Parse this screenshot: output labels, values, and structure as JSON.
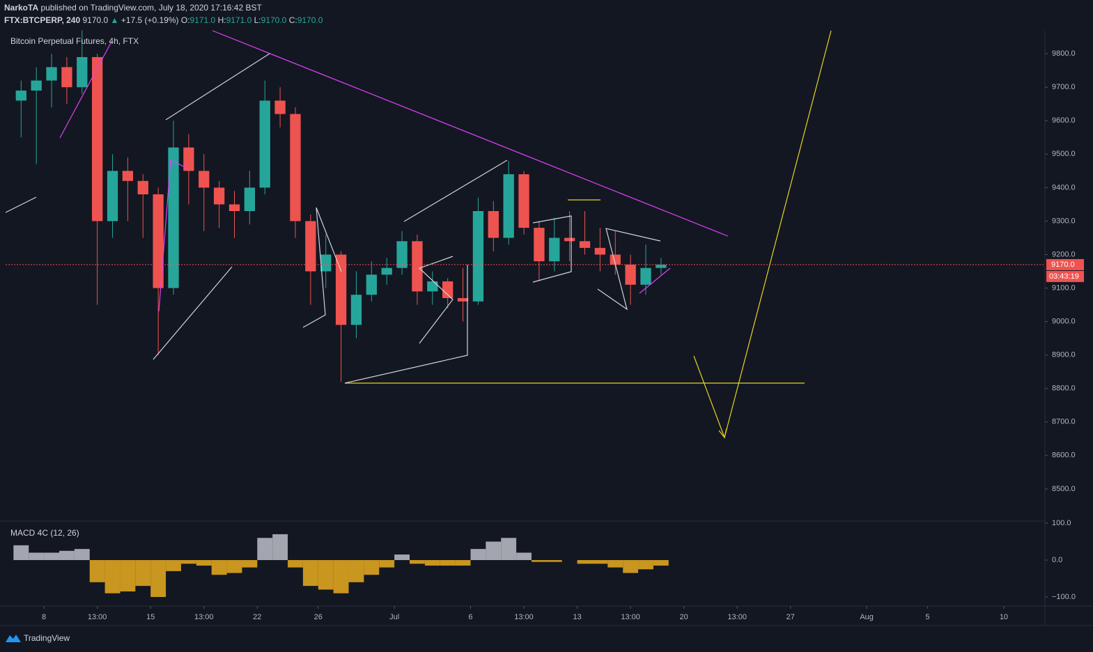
{
  "header": {
    "author": "NarkoTA",
    "published": "published on TradingView.com, July 18, 2020 17:16:42 BST",
    "symbol": "FTX:BTCPERP, 240",
    "last": "9170.0",
    "arrow": "▲",
    "change": "+17.5 (+0.19%)",
    "o_label": "O:",
    "o": "9171.0",
    "h_label": "H:",
    "h": "9171.0",
    "l_label": "L:",
    "l": "9170.0",
    "c_label": "C:",
    "c": "9170.0"
  },
  "footer": {
    "brand": "TradingView"
  },
  "chart_data": [
    {
      "type": "candlestick",
      "title": "Bitcoin Perpetual Futures, 4h, FTX",
      "x": [
        6.5,
        7.5,
        8.5,
        9.5,
        10.5,
        11.5,
        12.5,
        13.5,
        14.5,
        15.5,
        16.5,
        17.5,
        18.5,
        19.5,
        20.5,
        21.5,
        22.5,
        23.5,
        24.5,
        25.5,
        26.5,
        27.5,
        28.5,
        29.5,
        30.5,
        31.5,
        32.5,
        33.5,
        34.5,
        35.5,
        36.5,
        37.5,
        38.5,
        39.5,
        40.5,
        41.5,
        42.5,
        43.5,
        44.5,
        45.5,
        46.5,
        47.5,
        48.5
      ],
      "open": [
        9660,
        9690,
        9720,
        9760,
        9700,
        9790,
        9300,
        9450,
        9420,
        9380,
        9100,
        9520,
        9450,
        9400,
        9350,
        9330,
        9400,
        9660,
        9620,
        9300,
        9150,
        9200,
        8990,
        9080,
        9140,
        9160,
        9240,
        9090,
        9120,
        9070,
        9060,
        9330,
        9250,
        9440,
        9280,
        9180,
        9250,
        9240,
        9220,
        9200,
        9170,
        9110,
        9160
      ],
      "high": [
        9720,
        9760,
        9800,
        9790,
        9870,
        9800,
        9500,
        9490,
        9440,
        9400,
        9600,
        9560,
        9500,
        9420,
        9390,
        9450,
        9720,
        9700,
        9640,
        9320,
        9260,
        9210,
        9150,
        9180,
        9190,
        9270,
        9260,
        9150,
        9130,
        9160,
        9370,
        9360,
        9480,
        9450,
        9300,
        9310,
        9330,
        9330,
        9280,
        9270,
        9200,
        9230,
        9190
      ],
      "low": [
        9550,
        9470,
        9640,
        9650,
        9680,
        9050,
        9250,
        9300,
        9250,
        8900,
        9080,
        9350,
        9270,
        9280,
        9250,
        9290,
        9380,
        9580,
        9250,
        9050,
        9100,
        8820,
        8950,
        9060,
        9110,
        9140,
        9050,
        9050,
        9040,
        9000,
        9050,
        9210,
        9230,
        9260,
        9120,
        9150,
        9180,
        9200,
        9150,
        9140,
        9050,
        9080,
        9140
      ],
      "close": [
        9690,
        9720,
        9760,
        9700,
        9790,
        9300,
        9450,
        9420,
        9380,
        9100,
        9520,
        9450,
        9400,
        9350,
        9330,
        9400,
        9660,
        9620,
        9300,
        9150,
        9200,
        8990,
        9080,
        9140,
        9160,
        9240,
        9090,
        9120,
        9070,
        9060,
        9330,
        9250,
        9440,
        9280,
        9180,
        9250,
        9240,
        9220,
        9200,
        9170,
        9110,
        9160,
        9170
      ],
      "up_color": "#26a69a",
      "down_color": "#ef5350",
      "xlim": [
        5.48,
        73.7
      ],
      "xticks": [
        {
          "value": 8,
          "label": "8"
        },
        {
          "value": 11.5,
          "label": "13:00"
        },
        {
          "value": 15,
          "label": "15"
        },
        {
          "value": 18.5,
          "label": "13:00"
        },
        {
          "value": 22,
          "label": "22"
        },
        {
          "value": 26,
          "label": "26"
        },
        {
          "value": 31,
          "label": "Jul"
        },
        {
          "value": 36,
          "label": "6"
        },
        {
          "value": 39.5,
          "label": "13:00"
        },
        {
          "value": 43,
          "label": "13"
        },
        {
          "value": 46.5,
          "label": "13:00"
        },
        {
          "value": 50,
          "label": "20"
        },
        {
          "value": 53.5,
          "label": "13:00"
        },
        {
          "value": 57,
          "label": "27"
        },
        {
          "value": 62,
          "label": "Aug"
        },
        {
          "value": 66,
          "label": "5"
        },
        {
          "value": 71,
          "label": "10"
        }
      ],
      "ylim": [
        8404,
        9869
      ],
      "yticks": [
        {
          "value": 8500,
          "label": "8500.0"
        },
        {
          "value": 8600,
          "label": "8600.0"
        },
        {
          "value": 8700,
          "label": "8700.0"
        },
        {
          "value": 8800,
          "label": "8800.0"
        },
        {
          "value": 8900,
          "label": "8900.0"
        },
        {
          "value": 9000,
          "label": "9000.0"
        },
        {
          "value": 9100,
          "label": "9100.0"
        },
        {
          "value": 9200,
          "label": "9200.0"
        },
        {
          "value": 9300,
          "label": "9300.0"
        },
        {
          "value": 9400,
          "label": "9400.0"
        },
        {
          "value": 9500,
          "label": "9500.0"
        },
        {
          "value": 9600,
          "label": "9600.0"
        },
        {
          "value": 9700,
          "label": "9700.0"
        },
        {
          "value": 9800,
          "label": "9800.0"
        }
      ],
      "last_price": {
        "value": 9170,
        "label": "9170.0"
      },
      "countdown": "03:43:19"
    },
    {
      "type": "histogram-oscillator",
      "title": "MACD 4C (12, 26)",
      "values": [
        40,
        20,
        20,
        25,
        30,
        -60,
        -90,
        -85,
        -70,
        -100,
        -30,
        -10,
        -15,
        -40,
        -35,
        -20,
        60,
        70,
        -20,
        -70,
        -80,
        -90,
        -60,
        -40,
        -20,
        15,
        -10,
        -15,
        -15,
        -15,
        30,
        50,
        60,
        20,
        -5,
        -5,
        0,
        -10,
        -10,
        -20,
        -35,
        -25,
        -15
      ],
      "pos_color": "#a3a6af",
      "neg_color": "#c9961f",
      "ylim": [
        -124.5,
        105.7
      ],
      "yticks": [
        {
          "value": -100,
          "label": "−100.0"
        },
        {
          "value": 0,
          "label": "0.0"
        },
        {
          "value": 100,
          "label": "100.0"
        }
      ]
    }
  ]
}
